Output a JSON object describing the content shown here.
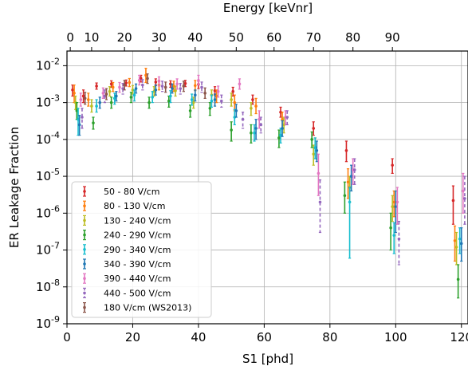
{
  "chart_data": {
    "type": "scatter",
    "xlabel": "S1 [phd]",
    "ylabel": "ER Leakage Fraction",
    "top_xlabel": "Energy [keVnr]",
    "xlim": [
      0,
      122
    ],
    "ylim": [
      1e-09,
      0.025
    ],
    "yscale": "log",
    "grid": true,
    "legend_position": "lower-left",
    "x_ticks": [
      0,
      20,
      40,
      60,
      80,
      100,
      120
    ],
    "x_tick_labels": [
      "0",
      "20",
      "40",
      "60",
      "80",
      "100",
      "120"
    ],
    "y_ticks": [
      1e-09,
      1e-08,
      1e-07,
      1e-06,
      1e-05,
      0.0001,
      0.001,
      0.01
    ],
    "y_tick_exponents": [
      "-9",
      "-8",
      "-7",
      "-6",
      "-5",
      "-4",
      "-3",
      "-2"
    ],
    "y_tick_base": "10",
    "top_ticks": [
      {
        "label": "0",
        "s1": 1.0
      },
      {
        "label": "10",
        "s1": 7.5
      },
      {
        "label": "20",
        "s1": 17.5
      },
      {
        "label": "30",
        "s1": 28.0
      },
      {
        "label": "40",
        "s1": 39.0
      },
      {
        "label": "50",
        "s1": 51.5
      },
      {
        "label": "60",
        "s1": 63.0
      },
      {
        "label": "70",
        "s1": 75.0
      },
      {
        "label": "80",
        "s1": 87.0
      },
      {
        "label": "90",
        "s1": 99.0
      }
    ],
    "series": [
      {
        "name": "50 - 80 V/cm",
        "color": "#d62728",
        "dashed": false,
        "points": [
          {
            "x": 1.7,
            "y": 0.0022,
            "lo": 0.0015,
            "hi": 0.003
          },
          {
            "x": 5.0,
            "y": 0.0015,
            "lo": 0.001,
            "hi": 0.0022
          },
          {
            "x": 9.0,
            "y": 0.0028,
            "lo": 0.0023,
            "hi": 0.0034
          },
          {
            "x": 13.5,
            "y": 0.0032,
            "lo": 0.0026,
            "hi": 0.0039
          },
          {
            "x": 18.0,
            "y": 0.0034,
            "lo": 0.0028,
            "hi": 0.0041
          },
          {
            "x": 22.5,
            "y": 0.0045,
            "lo": 0.0036,
            "hi": 0.0055
          },
          {
            "x": 27.0,
            "y": 0.0036,
            "lo": 0.0029,
            "hi": 0.0044
          },
          {
            "x": 31.5,
            "y": 0.0032,
            "lo": 0.0026,
            "hi": 0.0039
          },
          {
            "x": 36.0,
            "y": 0.0033,
            "lo": 0.0027,
            "hi": 0.004
          },
          {
            "x": 40.0,
            "y": 0.0031,
            "lo": 0.0024,
            "hi": 0.0038
          },
          {
            "x": 45.0,
            "y": 0.0021,
            "lo": 0.0016,
            "hi": 0.0027
          },
          {
            "x": 50.5,
            "y": 0.002,
            "lo": 0.0015,
            "hi": 0.0026
          },
          {
            "x": 56.5,
            "y": 0.0012,
            "lo": 0.0009,
            "hi": 0.0016
          },
          {
            "x": 65.0,
            "y": 0.00055,
            "lo": 0.0004,
            "hi": 0.00075
          },
          {
            "x": 75.0,
            "y": 0.0002,
            "lo": 0.00013,
            "hi": 0.0003
          },
          {
            "x": 85.0,
            "y": 5e-05,
            "lo": 2.5e-05,
            "hi": 9e-05
          },
          {
            "x": 99.0,
            "y": 2e-05,
            "lo": 1.2e-05,
            "hi": 3e-05
          },
          {
            "x": 117.5,
            "y": 2.2e-06,
            "lo": 5e-07,
            "hi": 5.5e-06
          }
        ]
      },
      {
        "name": "80 - 130 V/cm",
        "color": "#ff7f0e",
        "dashed": false,
        "points": [
          {
            "x": 2.2,
            "y": 0.0018,
            "lo": 0.001,
            "hi": 0.003
          },
          {
            "x": 6.5,
            "y": 0.0012,
            "lo": 0.0008,
            "hi": 0.0018
          },
          {
            "x": 14.0,
            "y": 0.0026,
            "lo": 0.002,
            "hi": 0.0035
          },
          {
            "x": 19.0,
            "y": 0.0035,
            "lo": 0.0027,
            "hi": 0.0045
          },
          {
            "x": 24.0,
            "y": 0.0055,
            "lo": 0.0035,
            "hi": 0.0085
          },
          {
            "x": 28.0,
            "y": 0.003,
            "lo": 0.0022,
            "hi": 0.004
          },
          {
            "x": 32.5,
            "y": 0.0028,
            "lo": 0.002,
            "hi": 0.0038
          },
          {
            "x": 39.0,
            "y": 0.0029,
            "lo": 0.0021,
            "hi": 0.004
          },
          {
            "x": 45.5,
            "y": 0.0015,
            "lo": 0.001,
            "hi": 0.0022
          },
          {
            "x": 51.0,
            "y": 0.001,
            "lo": 0.0006,
            "hi": 0.0016
          },
          {
            "x": 57.5,
            "y": 0.0008,
            "lo": 0.0005,
            "hi": 0.0013
          },
          {
            "x": 65.5,
            "y": 0.00035,
            "lo": 0.0002,
            "hi": 0.00055
          },
          {
            "x": 75.5,
            "y": 6e-05,
            "lo": 3e-05,
            "hi": 0.00011
          },
          {
            "x": 85.5,
            "y": 7e-06,
            "lo": 2.5e-06,
            "hi": 1.6e-05
          },
          {
            "x": 99.5,
            "y": 2e-06,
            "lo": 8e-07,
            "hi": 4e-06
          },
          {
            "x": 118.0,
            "y": 1.8e-07,
            "lo": 5e-08,
            "hi": 4.5e-07
          }
        ]
      },
      {
        "name": "130 - 240 V/cm",
        "color": "#bcbd22",
        "dashed": false,
        "points": [
          {
            "x": 2.6,
            "y": 0.001,
            "lo": 0.00065,
            "hi": 0.0015
          },
          {
            "x": 7.5,
            "y": 0.0008,
            "lo": 0.00055,
            "hi": 0.0012
          },
          {
            "x": 13.0,
            "y": 0.002,
            "lo": 0.0015,
            "hi": 0.0027
          },
          {
            "x": 20.0,
            "y": 0.0022,
            "lo": 0.0017,
            "hi": 0.0029
          },
          {
            "x": 26.5,
            "y": 0.002,
            "lo": 0.0015,
            "hi": 0.0027
          },
          {
            "x": 33.0,
            "y": 0.0021,
            "lo": 0.0015,
            "hi": 0.0028
          },
          {
            "x": 38.5,
            "y": 0.001,
            "lo": 0.0007,
            "hi": 0.0014
          },
          {
            "x": 44.0,
            "y": 0.0016,
            "lo": 0.0011,
            "hi": 0.0022
          },
          {
            "x": 50.0,
            "y": 0.0012,
            "lo": 0.0008,
            "hi": 0.0018
          },
          {
            "x": 56.0,
            "y": 0.0007,
            "lo": 0.00045,
            "hi": 0.001
          },
          {
            "x": 66.0,
            "y": 0.00025,
            "lo": 0.00015,
            "hi": 0.0004
          },
          {
            "x": 75.0,
            "y": 4e-05,
            "lo": 2e-05,
            "hi": 7e-05
          },
          {
            "x": 86.0,
            "y": 5e-06,
            "lo": 2e-06,
            "hi": 1e-05
          },
          {
            "x": 99.0,
            "y": 1.5e-06,
            "lo": 6e-07,
            "hi": 3e-06
          },
          {
            "x": 118.5,
            "y": 1.2e-07,
            "lo": 4e-08,
            "hi": 3e-07
          }
        ]
      },
      {
        "name": "240 - 290 V/cm",
        "color": "#2ca02c",
        "dashed": false,
        "points": [
          {
            "x": 3.0,
            "y": 0.0006,
            "lo": 0.00035,
            "hi": 0.001
          },
          {
            "x": 8.0,
            "y": 0.00028,
            "lo": 0.00019,
            "hi": 0.0004
          },
          {
            "x": 13.5,
            "y": 0.001,
            "lo": 0.0007,
            "hi": 0.0014
          },
          {
            "x": 19.5,
            "y": 0.0014,
            "lo": 0.001,
            "hi": 0.0019
          },
          {
            "x": 25.0,
            "y": 0.001,
            "lo": 0.0007,
            "hi": 0.0014
          },
          {
            "x": 31.0,
            "y": 0.0011,
            "lo": 0.00075,
            "hi": 0.0015
          },
          {
            "x": 37.5,
            "y": 0.0006,
            "lo": 0.0004,
            "hi": 0.00085
          },
          {
            "x": 43.5,
            "y": 0.0007,
            "lo": 0.00045,
            "hi": 0.001
          },
          {
            "x": 50.0,
            "y": 0.00018,
            "lo": 9e-05,
            "hi": 0.0003
          },
          {
            "x": 56.0,
            "y": 0.00015,
            "lo": 8e-05,
            "hi": 0.00025
          },
          {
            "x": 64.5,
            "y": 0.00011,
            "lo": 6e-05,
            "hi": 0.00018
          },
          {
            "x": 74.5,
            "y": 0.0001,
            "lo": 6e-05,
            "hi": 0.00016
          },
          {
            "x": 84.5,
            "y": 3e-06,
            "lo": 1e-06,
            "hi": 7e-06
          },
          {
            "x": 98.5,
            "y": 4e-07,
            "lo": 1e-07,
            "hi": 1e-06
          },
          {
            "x": 119.0,
            "y": 1.6e-08,
            "lo": 5e-09,
            "hi": 4e-08
          }
        ]
      },
      {
        "name": "290 - 340 V/cm",
        "color": "#17becf",
        "dashed": false,
        "points": [
          {
            "x": 3.4,
            "y": 0.00035,
            "lo": 0.00013,
            "hi": 0.0007
          },
          {
            "x": 9.0,
            "y": 0.0008,
            "lo": 0.00055,
            "hi": 0.0012
          },
          {
            "x": 14.5,
            "y": 0.0013,
            "lo": 0.0009,
            "hi": 0.0018
          },
          {
            "x": 20.5,
            "y": 0.0016,
            "lo": 0.0011,
            "hi": 0.0022
          },
          {
            "x": 26.0,
            "y": 0.0014,
            "lo": 0.001,
            "hi": 0.002
          },
          {
            "x": 31.5,
            "y": 0.0015,
            "lo": 0.001,
            "hi": 0.0021
          },
          {
            "x": 38.0,
            "y": 0.0012,
            "lo": 0.00085,
            "hi": 0.0017
          },
          {
            "x": 44.0,
            "y": 0.0011,
            "lo": 0.00075,
            "hi": 0.0016
          },
          {
            "x": 51.0,
            "y": 0.0004,
            "lo": 0.00025,
            "hi": 0.00065
          },
          {
            "x": 57.0,
            "y": 0.00015,
            "lo": 9e-05,
            "hi": 0.00025
          },
          {
            "x": 65.0,
            "y": 0.00013,
            "lo": 8e-05,
            "hi": 0.0002
          },
          {
            "x": 75.5,
            "y": 6e-05,
            "lo": 3e-05,
            "hi": 0.00011
          },
          {
            "x": 86.0,
            "y": 2e-06,
            "lo": 6e-08,
            "hi": 5e-06
          },
          {
            "x": 99.5,
            "y": 2.5e-07,
            "lo": 8e-08,
            "hi": 5.5e-07
          },
          {
            "x": 119.5,
            "y": 2e-07,
            "lo": 8e-08,
            "hi": 4e-07
          }
        ]
      },
      {
        "name": "340 - 390 V/cm",
        "color": "#1f77b4",
        "dashed": false,
        "points": [
          {
            "x": 3.8,
            "y": 0.00025,
            "lo": 0.00013,
            "hi": 0.00045
          },
          {
            "x": 10.0,
            "y": 0.001,
            "lo": 0.0007,
            "hi": 0.0014
          },
          {
            "x": 15.0,
            "y": 0.0015,
            "lo": 0.0011,
            "hi": 0.002
          },
          {
            "x": 21.0,
            "y": 0.0024,
            "lo": 0.0018,
            "hi": 0.0032
          },
          {
            "x": 27.0,
            "y": 0.0022,
            "lo": 0.0016,
            "hi": 0.003
          },
          {
            "x": 32.0,
            "y": 0.0024,
            "lo": 0.0018,
            "hi": 0.0032
          },
          {
            "x": 39.0,
            "y": 0.0016,
            "lo": 0.0011,
            "hi": 0.0022
          },
          {
            "x": 45.0,
            "y": 0.0012,
            "lo": 0.0008,
            "hi": 0.0017
          },
          {
            "x": 51.5,
            "y": 0.0006,
            "lo": 0.0004,
            "hi": 0.0009
          },
          {
            "x": 57.5,
            "y": 0.0002,
            "lo": 0.0001,
            "hi": 0.00035
          },
          {
            "x": 65.5,
            "y": 0.0002,
            "lo": 0.00012,
            "hi": 0.00032
          },
          {
            "x": 76.0,
            "y": 5e-05,
            "lo": 2.5e-05,
            "hi": 9e-05
          },
          {
            "x": 86.5,
            "y": 1e-05,
            "lo": 4e-06,
            "hi": 2e-05
          },
          {
            "x": 100.0,
            "y": 1.5e-06,
            "lo": 3e-07,
            "hi": 4e-06
          },
          {
            "x": 120.0,
            "y": 1.5e-07,
            "lo": 5e-08,
            "hi": 4e-07
          }
        ]
      },
      {
        "name": "390 - 440 V/cm",
        "color": "#e377c2",
        "dashed": false,
        "points": [
          {
            "x": 4.2,
            "y": 0.0012,
            "lo": 0.0008,
            "hi": 0.0018
          },
          {
            "x": 11.0,
            "y": 0.0018,
            "lo": 0.0013,
            "hi": 0.0025
          },
          {
            "x": 16.0,
            "y": 0.0026,
            "lo": 0.0019,
            "hi": 0.0035
          },
          {
            "x": 22.0,
            "y": 0.004,
            "lo": 0.003,
            "hi": 0.0055
          },
          {
            "x": 28.0,
            "y": 0.0038,
            "lo": 0.0028,
            "hi": 0.005
          },
          {
            "x": 33.5,
            "y": 0.0032,
            "lo": 0.0023,
            "hi": 0.0044
          },
          {
            "x": 40.0,
            "y": 0.004,
            "lo": 0.003,
            "hi": 0.0055
          },
          {
            "x": 46.0,
            "y": 0.002,
            "lo": 0.0014,
            "hi": 0.0028
          },
          {
            "x": 52.5,
            "y": 0.0032,
            "lo": 0.0023,
            "hi": 0.0044
          },
          {
            "x": 58.5,
            "y": 0.00035,
            "lo": 0.0002,
            "hi": 0.0006
          },
          {
            "x": 66.5,
            "y": 0.0004,
            "lo": 0.00025,
            "hi": 0.0006
          },
          {
            "x": 76.5,
            "y": 1.2e-05,
            "lo": 3e-06,
            "hi": 4e-05
          },
          {
            "x": 87.0,
            "y": 1.5e-05,
            "lo": 6e-06,
            "hi": 3e-05
          },
          {
            "x": 100.5,
            "y": 2e-06,
            "lo": 5e-07,
            "hi": 5e-06
          },
          {
            "x": 120.5,
            "y": 4e-06,
            "lo": 1e-06,
            "hi": 1.2e-05
          }
        ]
      },
      {
        "name": "440 - 500 V/cm",
        "color": "#9467bd",
        "dashed": true,
        "points": [
          {
            "x": 4.6,
            "y": 0.0004,
            "lo": 0.0002,
            "hi": 0.0007
          },
          {
            "x": 11.5,
            "y": 0.0015,
            "lo": 0.001,
            "hi": 0.0022
          },
          {
            "x": 17.0,
            "y": 0.0024,
            "lo": 0.0017,
            "hi": 0.0033
          },
          {
            "x": 23.0,
            "y": 0.003,
            "lo": 0.0022,
            "hi": 0.0042
          },
          {
            "x": 29.0,
            "y": 0.0028,
            "lo": 0.002,
            "hi": 0.0038
          },
          {
            "x": 34.5,
            "y": 0.0024,
            "lo": 0.0017,
            "hi": 0.0033
          },
          {
            "x": 41.0,
            "y": 0.0026,
            "lo": 0.0019,
            "hi": 0.0036
          },
          {
            "x": 47.0,
            "y": 0.0011,
            "lo": 0.00075,
            "hi": 0.0016
          },
          {
            "x": 53.5,
            "y": 0.00035,
            "lo": 0.0002,
            "hi": 0.00055
          },
          {
            "x": 59.0,
            "y": 0.00025,
            "lo": 0.00015,
            "hi": 0.0004
          },
          {
            "x": 67.0,
            "y": 0.0004,
            "lo": 0.00025,
            "hi": 0.0006
          },
          {
            "x": 77.0,
            "y": 2e-06,
            "lo": 3e-07,
            "hi": 8e-06
          },
          {
            "x": 87.5,
            "y": 1.5e-05,
            "lo": 6e-06,
            "hi": 3e-05
          },
          {
            "x": 101.0,
            "y": 2e-07,
            "lo": 4e-08,
            "hi": 6e-07
          },
          {
            "x": 121.0,
            "y": 2.5e-06,
            "lo": 5e-07,
            "hi": 1e-05
          }
        ]
      },
      {
        "name": "180 V/cm (WS2013)",
        "color": "#8c564b",
        "dashed": false,
        "points": [
          {
            "x": 5.5,
            "y": 0.0013,
            "lo": 0.0009,
            "hi": 0.0019
          },
          {
            "x": 12.0,
            "y": 0.0017,
            "lo": 0.0012,
            "hi": 0.0024
          },
          {
            "x": 17.5,
            "y": 0.003,
            "lo": 0.0022,
            "hi": 0.004
          },
          {
            "x": 24.5,
            "y": 0.0045,
            "lo": 0.0033,
            "hi": 0.006
          },
          {
            "x": 30.0,
            "y": 0.0026,
            "lo": 0.0019,
            "hi": 0.0036
          },
          {
            "x": 35.5,
            "y": 0.0028,
            "lo": 0.002,
            "hi": 0.0038
          },
          {
            "x": 42.0,
            "y": 0.0018,
            "lo": 0.0013,
            "hi": 0.0025
          }
        ]
      }
    ]
  }
}
